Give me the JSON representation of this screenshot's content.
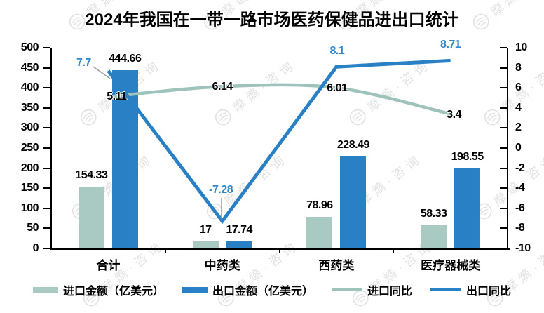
{
  "title": "2024年我国在一带一路市场医药保健品进出口统计",
  "watermark": {
    "text": "摩熵·咨询",
    "icon": "fingerprint-seal-icon"
  },
  "chart_data": {
    "type": "bar",
    "subtype": "combo-bar-line-dual-axis",
    "title": "2024年我国在一带一路市场医药保健品进出口统计",
    "categories": [
      "合计",
      "中药类",
      "西药类",
      "医疗器械类"
    ],
    "left_axis": {
      "min": 0,
      "max": 500,
      "step": 50,
      "tick_labels": [
        "500",
        "450",
        "400",
        "350",
        "300",
        "250",
        "200",
        "150",
        "100",
        "50",
        "0"
      ]
    },
    "right_axis": {
      "min": -10,
      "max": 10,
      "step": 2,
      "tick_labels": [
        "10",
        "8",
        "6",
        "4",
        "2",
        "0",
        "-2",
        "-4",
        "-6",
        "-8",
        "-10"
      ]
    },
    "grid": false,
    "legend_position": "bottom",
    "series": [
      {
        "name": "进口金额（亿美元）",
        "kind": "bar",
        "axis": "left",
        "color": "#a9cac3",
        "values": [
          154.33,
          17,
          78.96,
          58.33
        ],
        "labels": [
          "154.33",
          "17",
          "78.96",
          "58.33"
        ],
        "label_color": "#000000"
      },
      {
        "name": "出口金额（亿美元）",
        "kind": "bar",
        "axis": "left",
        "color": "#2a80c4",
        "values": [
          444.66,
          17.74,
          228.49,
          198.55
        ],
        "labels": [
          "444.66",
          "17.74",
          "228.49",
          "198.55"
        ],
        "label_color": "#000000"
      },
      {
        "name": "进口同比",
        "kind": "line",
        "axis": "right",
        "color": "#9fc3bc",
        "values": [
          5.11,
          6.14,
          6.01,
          3.4
        ],
        "labels": [
          "5.11",
          "6.14",
          "6.01",
          "3.4"
        ],
        "label_color": "#000000",
        "label_offsets": [
          [
            12,
            0
          ],
          [
            0,
            1
          ],
          [
            1,
            1
          ],
          [
            5,
            2
          ]
        ]
      },
      {
        "name": "出口同比",
        "kind": "line",
        "axis": "right",
        "color": "#2a80c4",
        "values": [
          7.7,
          -7.28,
          8.1,
          8.71
        ],
        "labels": [
          "7.7",
          "-7.28",
          "8.1",
          "8.71"
        ],
        "label_color": "#2f86c9",
        "label_offsets": [
          [
            -35,
            -11
          ],
          [
            -2,
            -44
          ],
          [
            1,
            -22
          ],
          [
            0,
            -22
          ]
        ]
      }
    ],
    "annotation_leader_lines": [
      {
        "for_label": "7.7",
        "x1": 133,
        "y1": 95,
        "x2": 157,
        "y2": 112,
        "color": "#9e9e9e"
      },
      {
        "for_label": "-7.28",
        "x1": 316,
        "y1": 282,
        "x2": 316,
        "y2": 312,
        "color": "#9e9e9e"
      }
    ]
  },
  "legend": {
    "items": [
      {
        "label": "进口金额（亿美元）",
        "swatch": "bar",
        "color": "#a9cac3"
      },
      {
        "label": "出口金额（亿美元）",
        "swatch": "bar",
        "color": "#2a80c4"
      },
      {
        "label": "进口同比",
        "swatch": "line",
        "color": "#9fc3bc"
      },
      {
        "label": "出口同比",
        "swatch": "line",
        "color": "#2a80c4"
      }
    ]
  }
}
